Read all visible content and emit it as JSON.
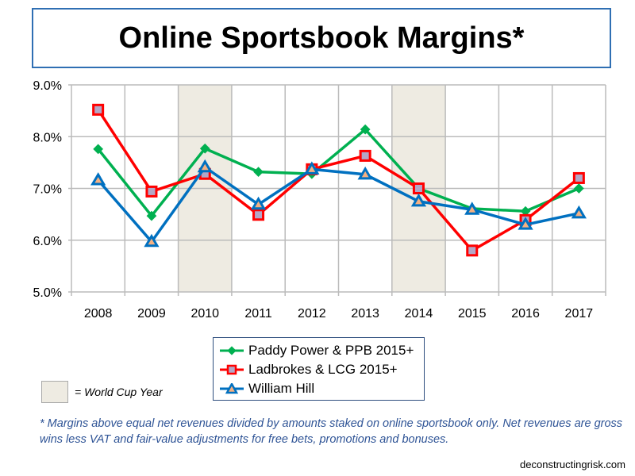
{
  "chart_data": {
    "type": "line",
    "title": "Online Sportsbook Margins*",
    "xlabel": "",
    "ylabel": "",
    "categories": [
      "2008",
      "2009",
      "2010",
      "2011",
      "2012",
      "2013",
      "2014",
      "2015",
      "2016",
      "2017"
    ],
    "ylim": [
      5.0,
      9.0
    ],
    "yticks": [
      "5.0%",
      "6.0%",
      "7.0%",
      "8.0%",
      "9.0%"
    ],
    "ytick_values": [
      5,
      6,
      7,
      8,
      9
    ],
    "grid": true,
    "shaded_categories": [
      "2010",
      "2014"
    ],
    "series": [
      {
        "name": "Paddy Power & PPB 2015+",
        "color": "#00b050",
        "marker": "diamond",
        "values": [
          7.76,
          6.47,
          7.77,
          7.32,
          7.28,
          8.14,
          7.0,
          6.61,
          6.56,
          7.0
        ]
      },
      {
        "name": "Ladbrokes & LCG 2015+",
        "color": "#ff0000",
        "marker": "square",
        "values": [
          8.52,
          6.94,
          7.28,
          6.49,
          7.37,
          7.63,
          7.0,
          5.8,
          6.39,
          7.2
        ]
      },
      {
        "name": "William Hill",
        "color": "#0070c0",
        "marker": "triangle",
        "values": [
          7.16,
          5.97,
          7.41,
          6.69,
          7.37,
          7.27,
          6.75,
          6.59,
          6.3,
          6.52
        ]
      }
    ],
    "legend_position": "bottom-center"
  },
  "world_cup_label": "= World Cup Year",
  "footnote": "* Margins above equal net revenues divided by amounts staked on online sportsbook only. Net revenues are gross wins less VAT and fair-value adjustments for free bets, promotions and bonuses.",
  "site": "deconstructingrisk.com"
}
